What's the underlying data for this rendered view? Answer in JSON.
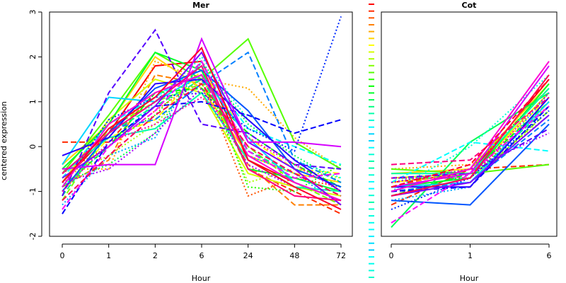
{
  "chart_data": [
    {
      "type": "line",
      "title": "Mer",
      "xlabel": "Hour",
      "ylabel": "centered expression",
      "categories": [
        "0",
        "1",
        "2",
        "6",
        "24",
        "48",
        "72"
      ],
      "ylim": [
        -2,
        3
      ],
      "yticks": [
        -2,
        -1,
        0,
        1,
        2,
        3
      ],
      "grid": false,
      "series": [
        {
          "color": "#ff0000",
          "dash": "solid",
          "values": [
            -0.8,
            0.3,
            1.8,
            1.9,
            -0.3,
            -0.8,
            -1.2
          ]
        },
        {
          "color": "#ff2a00",
          "dash": "dash",
          "values": [
            0.1,
            0.1,
            1.2,
            1.6,
            -0.5,
            -1.0,
            -1.5
          ]
        },
        {
          "color": "#ff5500",
          "dash": "dot",
          "values": [
            -0.6,
            0.0,
            0.8,
            1.5,
            -1.1,
            -0.7,
            -0.9
          ]
        },
        {
          "color": "#ff8000",
          "dash": "dash",
          "values": [
            -0.9,
            -0.3,
            1.6,
            1.4,
            -0.4,
            -1.3,
            -1.3
          ]
        },
        {
          "color": "#ffaa00",
          "dash": "dot",
          "values": [
            -0.5,
            -0.5,
            1.9,
            1.5,
            1.3,
            0.2,
            -0.5
          ]
        },
        {
          "color": "#ffd500",
          "dash": "solid",
          "values": [
            -0.4,
            0.5,
            2.0,
            1.3,
            -0.2,
            -0.6,
            -0.8
          ]
        },
        {
          "color": "#ffff00",
          "dash": "dash",
          "values": [
            -1.0,
            0.2,
            0.6,
            1.7,
            0.2,
            -0.5,
            -0.6
          ]
        },
        {
          "color": "#d5ff00",
          "dash": "solid",
          "values": [
            -0.8,
            0.6,
            1.5,
            1.2,
            -0.6,
            -0.9,
            -1.1
          ]
        },
        {
          "color": "#aaff00",
          "dash": "dot",
          "values": [
            -0.7,
            -0.2,
            0.5,
            1.6,
            -0.8,
            -0.5,
            -0.7
          ]
        },
        {
          "color": "#80ff00",
          "dash": "dash",
          "values": [
            -1.2,
            0.4,
            1.0,
            1.4,
            0.0,
            -0.8,
            -1.3
          ]
        },
        {
          "color": "#55ff00",
          "dash": "solid",
          "values": [
            -0.6,
            0.7,
            2.1,
            1.5,
            2.4,
            0.1,
            -0.5
          ]
        },
        {
          "color": "#2aff00",
          "dash": "dot",
          "values": [
            -1.0,
            0.1,
            0.7,
            1.8,
            -0.9,
            -1.0,
            -0.4
          ]
        },
        {
          "color": "#00ff00",
          "dash": "dash",
          "values": [
            -0.9,
            0.0,
            1.2,
            1.3,
            0.3,
            -0.4,
            -0.9
          ]
        },
        {
          "color": "#00ff2a",
          "dash": "solid",
          "values": [
            -0.5,
            0.5,
            2.1,
            1.7,
            -0.5,
            -0.7,
            -1.0
          ]
        },
        {
          "color": "#00ff55",
          "dash": "dot",
          "values": [
            -0.8,
            -0.4,
            0.3,
            1.9,
            0.5,
            -0.2,
            -0.8
          ]
        },
        {
          "color": "#00ff80",
          "dash": "dash",
          "values": [
            -1.1,
            0.3,
            0.9,
            1.5,
            -0.1,
            -0.6,
            -1.1
          ]
        },
        {
          "color": "#00ffaa",
          "dash": "solid",
          "values": [
            -0.6,
            0.2,
            0.4,
            1.2,
            -0.3,
            -0.9,
            -1.0
          ]
        },
        {
          "color": "#00ffd5",
          "dash": "dot",
          "values": [
            -0.9,
            0.0,
            1.0,
            2.0,
            0.6,
            -0.3,
            -0.7
          ]
        },
        {
          "color": "#00ffff",
          "dash": "dash",
          "values": [
            -0.7,
            0.5,
            1.1,
            1.8,
            0.4,
            0.0,
            -0.4
          ]
        },
        {
          "color": "#00d5ff",
          "dash": "solid",
          "values": [
            -0.4,
            1.1,
            1.0,
            1.6,
            0.2,
            -0.8,
            -1.2
          ]
        },
        {
          "color": "#00aaff",
          "dash": "dot",
          "values": [
            -1.3,
            -0.2,
            0.2,
            1.9,
            -0.2,
            -0.6,
            -1.3
          ]
        },
        {
          "color": "#0080ff",
          "dash": "dash",
          "values": [
            -0.8,
            0.4,
            0.6,
            1.4,
            2.1,
            -0.3,
            -0.8
          ]
        },
        {
          "color": "#0055ff",
          "dash": "solid",
          "values": [
            -1.0,
            0.3,
            1.3,
            1.7,
            0.8,
            -0.5,
            -0.9
          ]
        },
        {
          "color": "#002aff",
          "dash": "dot",
          "values": [
            -0.9,
            0.6,
            1.1,
            1.2,
            0.4,
            -0.1,
            2.9
          ]
        },
        {
          "color": "#0000ff",
          "dash": "dash",
          "values": [
            -1.5,
            0.1,
            0.9,
            1.0,
            0.7,
            0.3,
            0.6
          ]
        },
        {
          "color": "#2a00ff",
          "dash": "solid",
          "values": [
            -0.2,
            0.2,
            1.4,
            1.5,
            0.6,
            -0.3,
            -1.0
          ]
        },
        {
          "color": "#5500ff",
          "dash": "dash",
          "values": [
            -1.1,
            1.2,
            2.6,
            0.5,
            0.3,
            -0.4,
            -0.5
          ]
        },
        {
          "color": "#8000ff",
          "dash": "solid",
          "values": [
            -0.7,
            0.0,
            0.9,
            2.1,
            0.1,
            -0.5,
            -1.3
          ]
        },
        {
          "color": "#aa00ff",
          "dash": "dot",
          "values": [
            -0.8,
            -0.5,
            0.3,
            1.3,
            -0.4,
            -0.9,
            -1.4
          ]
        },
        {
          "color": "#d500ff",
          "dash": "solid",
          "values": [
            -0.5,
            -0.4,
            -0.4,
            2.4,
            0.1,
            0.1,
            0.0
          ]
        },
        {
          "color": "#ff00ff",
          "dash": "dash",
          "values": [
            -1.4,
            0.0,
            0.8,
            1.9,
            -0.1,
            -0.7,
            -0.6
          ]
        },
        {
          "color": "#ff00d5",
          "dash": "solid",
          "values": [
            -0.9,
            0.5,
            1.2,
            1.6,
            -0.2,
            -0.8,
            -1.2
          ]
        },
        {
          "color": "#ff00aa",
          "dash": "dot",
          "values": [
            -1.0,
            0.1,
            0.5,
            1.1,
            0.2,
            -0.4,
            -1.0
          ]
        },
        {
          "color": "#ff0080",
          "dash": "solid",
          "values": [
            -0.6,
            0.3,
            1.0,
            1.8,
            -0.5,
            -1.1,
            -1.2
          ]
        },
        {
          "color": "#ff0055",
          "dash": "dash",
          "values": [
            -1.2,
            -0.2,
            0.7,
            1.4,
            0.0,
            -0.6,
            -1.1
          ]
        },
        {
          "color": "#ff002a",
          "dash": "solid",
          "values": [
            -0.8,
            0.4,
            1.1,
            2.2,
            -0.3,
            -0.9,
            -1.4
          ]
        }
      ]
    },
    {
      "type": "line",
      "title": "Cot",
      "xlabel": "Hour",
      "ylabel": "",
      "categories": [
        "0",
        "1",
        "6"
      ],
      "ylim": [
        -2,
        3
      ],
      "grid": false,
      "series": [
        {
          "color": "#ff0000",
          "dash": "solid",
          "values": [
            -0.8,
            -0.6,
            1.5
          ]
        },
        {
          "color": "#ff2a00",
          "dash": "dash",
          "values": [
            -1.3,
            -0.5,
            -0.4
          ]
        },
        {
          "color": "#ff5500",
          "dash": "dot",
          "values": [
            -0.7,
            -0.7,
            1.0
          ]
        },
        {
          "color": "#ff8000",
          "dash": "dash",
          "values": [
            -0.9,
            -0.5,
            1.3
          ]
        },
        {
          "color": "#ffaa00",
          "dash": "dot",
          "values": [
            -0.5,
            -0.4,
            0.9
          ]
        },
        {
          "color": "#ffd500",
          "dash": "solid",
          "values": [
            -0.6,
            -0.5,
            1.4
          ]
        },
        {
          "color": "#ffff00",
          "dash": "dash",
          "values": [
            -0.8,
            -0.6,
            1.1
          ]
        },
        {
          "color": "#d5ff00",
          "dash": "solid",
          "values": [
            -0.7,
            -0.6,
            1.2
          ]
        },
        {
          "color": "#aaff00",
          "dash": "dot",
          "values": [
            -0.9,
            -0.7,
            0.7
          ]
        },
        {
          "color": "#80ff00",
          "dash": "dash",
          "values": [
            -1.0,
            -0.8,
            0.8
          ]
        },
        {
          "color": "#55ff00",
          "dash": "solid",
          "values": [
            -0.5,
            -0.6,
            -0.4
          ]
        },
        {
          "color": "#2aff00",
          "dash": "dot",
          "values": [
            -0.8,
            -0.5,
            1.3
          ]
        },
        {
          "color": "#00ff00",
          "dash": "dash",
          "values": [
            -1.1,
            -0.6,
            1.0
          ]
        },
        {
          "color": "#00ff2a",
          "dash": "solid",
          "values": [
            -0.9,
            -0.7,
            1.4
          ]
        },
        {
          "color": "#00ff55",
          "dash": "solid",
          "values": [
            -1.8,
            0.1,
            1.2
          ]
        },
        {
          "color": "#00ff80",
          "dash": "dash",
          "values": [
            -0.7,
            -0.7,
            0.9
          ]
        },
        {
          "color": "#00ffaa",
          "dash": "solid",
          "values": [
            -0.6,
            -0.6,
            1.3
          ]
        },
        {
          "color": "#00ffd5",
          "dash": "dot",
          "values": [
            -1.0,
            0.0,
            1.6
          ]
        },
        {
          "color": "#00ffff",
          "dash": "dash",
          "values": [
            -0.8,
            0.1,
            -0.1
          ]
        },
        {
          "color": "#00d5ff",
          "dash": "solid",
          "values": [
            -0.9,
            -0.8,
            1.0
          ]
        },
        {
          "color": "#00aaff",
          "dash": "dot",
          "values": [
            -1.2,
            -0.9,
            1.2
          ]
        },
        {
          "color": "#0080ff",
          "dash": "dash",
          "values": [
            -1.0,
            -0.8,
            0.6
          ]
        },
        {
          "color": "#0055ff",
          "dash": "solid",
          "values": [
            -1.2,
            -1.3,
            0.5
          ]
        },
        {
          "color": "#002aff",
          "dash": "dot",
          "values": [
            -1.4,
            -0.7,
            0.8
          ]
        },
        {
          "color": "#0000ff",
          "dash": "dash",
          "values": [
            -1.0,
            -0.9,
            0.9
          ]
        },
        {
          "color": "#2a00ff",
          "dash": "solid",
          "values": [
            -0.9,
            -0.9,
            1.1
          ]
        },
        {
          "color": "#5500ff",
          "dash": "dash",
          "values": [
            -0.7,
            -0.6,
            0.4
          ]
        },
        {
          "color": "#8000ff",
          "dash": "solid",
          "values": [
            -1.1,
            -0.8,
            0.7
          ]
        },
        {
          "color": "#aa00ff",
          "dash": "dot",
          "values": [
            -0.8,
            -0.5,
            0.3
          ]
        },
        {
          "color": "#d500ff",
          "dash": "solid",
          "values": [
            -0.9,
            -0.6,
            1.8
          ]
        },
        {
          "color": "#ff00ff",
          "dash": "dash",
          "values": [
            -1.7,
            -0.6,
            0.9
          ]
        },
        {
          "color": "#ff00d5",
          "dash": "solid",
          "values": [
            -1.0,
            -0.5,
            1.9
          ]
        },
        {
          "color": "#ff00aa",
          "dash": "dot",
          "values": [
            -0.7,
            -0.7,
            1.2
          ]
        },
        {
          "color": "#ff0080",
          "dash": "dash",
          "values": [
            -0.4,
            -0.3,
            1.1
          ]
        },
        {
          "color": "#ff0055",
          "dash": "solid",
          "values": [
            -1.1,
            -0.7,
            1.6
          ]
        },
        {
          "color": "#ff002a",
          "dash": "dash",
          "values": [
            -0.9,
            -0.4,
            1.5
          ]
        }
      ]
    }
  ],
  "legend": {
    "colors": [
      "#ff0000",
      "#ff2a00",
      "#ff5500",
      "#ff8000",
      "#ffaa00",
      "#ffd500",
      "#ffff00",
      "#d5ff00",
      "#aaff00",
      "#80ff00",
      "#55ff00",
      "#2aff00",
      "#00ff00",
      "#00ff2a",
      "#00ff55",
      "#00ff80",
      "#00ffaa",
      "#00ffd5",
      "#00ffff",
      "#00d5ff",
      "#00d5ff",
      "#00ffff",
      "#00ffd5",
      "#00ffaa",
      "#00ffaa",
      "#00ffd5",
      "#00ffff",
      "#00ffff",
      "#00ffd5",
      "#00ffaa",
      "#00ffcc",
      "#00ffdd",
      "#00ffee",
      "#00ffff",
      "#00eeff",
      "#00ddff",
      "#00ccff",
      "#00ffff",
      "#00ffee",
      "#00ffdd",
      "#00ffcc"
    ]
  }
}
